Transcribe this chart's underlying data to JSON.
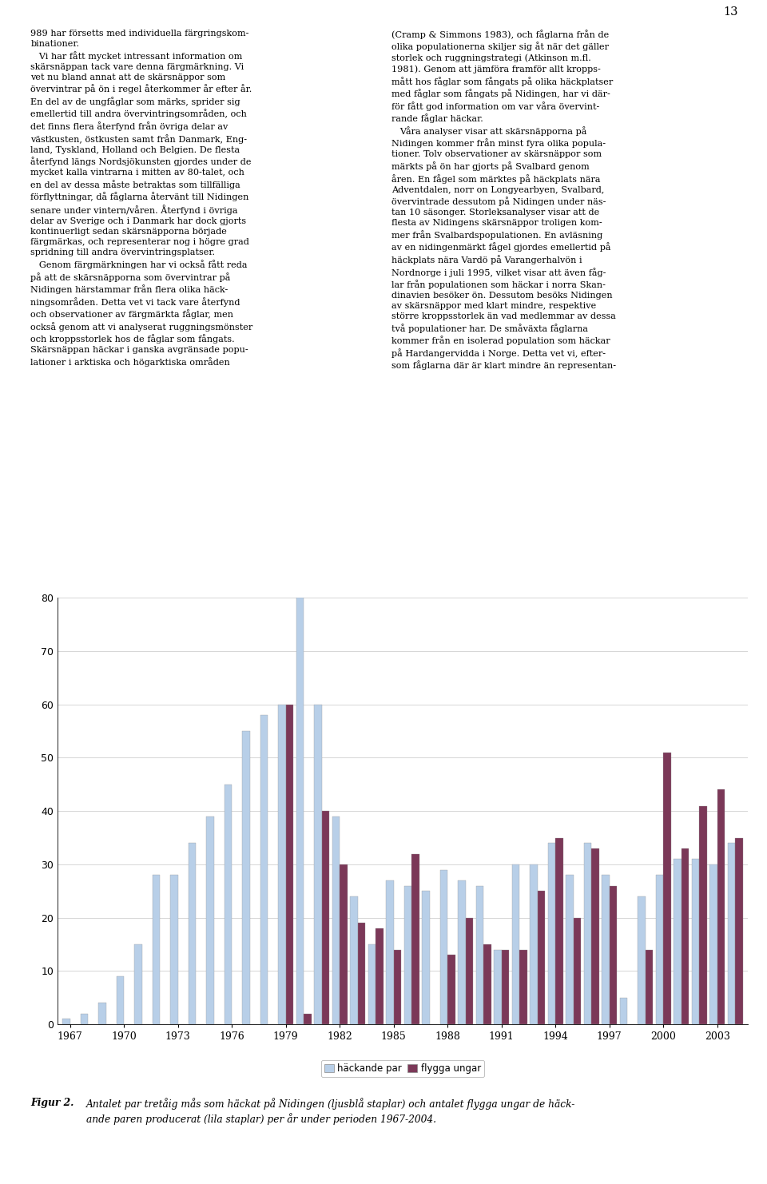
{
  "years": [
    1967,
    1968,
    1969,
    1970,
    1971,
    1972,
    1973,
    1974,
    1975,
    1976,
    1977,
    1978,
    1979,
    1980,
    1981,
    1982,
    1983,
    1984,
    1985,
    1986,
    1987,
    1988,
    1989,
    1990,
    1991,
    1992,
    1993,
    1994,
    1995,
    1996,
    1997,
    1998,
    1999,
    2000,
    2001,
    2002,
    2003,
    2004
  ],
  "hacking_par": [
    1,
    2,
    4,
    9,
    15,
    28,
    28,
    34,
    39,
    45,
    55,
    58,
    60,
    80,
    60,
    39,
    24,
    15,
    27,
    26,
    25,
    29,
    27,
    26,
    14,
    30,
    30,
    34,
    28,
    34,
    28,
    5,
    24,
    28,
    31,
    31,
    30,
    34
  ],
  "flygga_ungar": [
    0,
    0,
    0,
    0,
    0,
    0,
    0,
    0,
    0,
    0,
    0,
    0,
    60,
    2,
    40,
    30,
    19,
    18,
    14,
    32,
    0,
    13,
    20,
    15,
    14,
    14,
    25,
    35,
    20,
    33,
    26,
    0,
    14,
    51,
    33,
    41,
    44,
    35
  ],
  "color_hacking": "#b8cfe8",
  "color_flygga": "#7b3858",
  "ylim_min": 0,
  "ylim_max": 80,
  "yticks": [
    0,
    10,
    20,
    30,
    40,
    50,
    60,
    70,
    80
  ],
  "xtick_positions": [
    0,
    3,
    6,
    9,
    12,
    15,
    18,
    21,
    24,
    27,
    30,
    33,
    36
  ],
  "xtick_labels": [
    "1967",
    "1970",
    "1973",
    "1976",
    "1979",
    "1982",
    "1985",
    "1988",
    "1991",
    "1994",
    "1997",
    "2000",
    "2003"
  ],
  "legend_hacking": "häckande par",
  "legend_flygga": "flygga ungar",
  "page_number": "13",
  "caption_bold": "Figur 2.",
  "caption_normal": "Antalet par tretåig mås som häckat på Nidingen (ljusblå staplar) och antalet flygga ungar de häck-\nande paren producerat (lila staplar) per år under perioden 1967-2004."
}
